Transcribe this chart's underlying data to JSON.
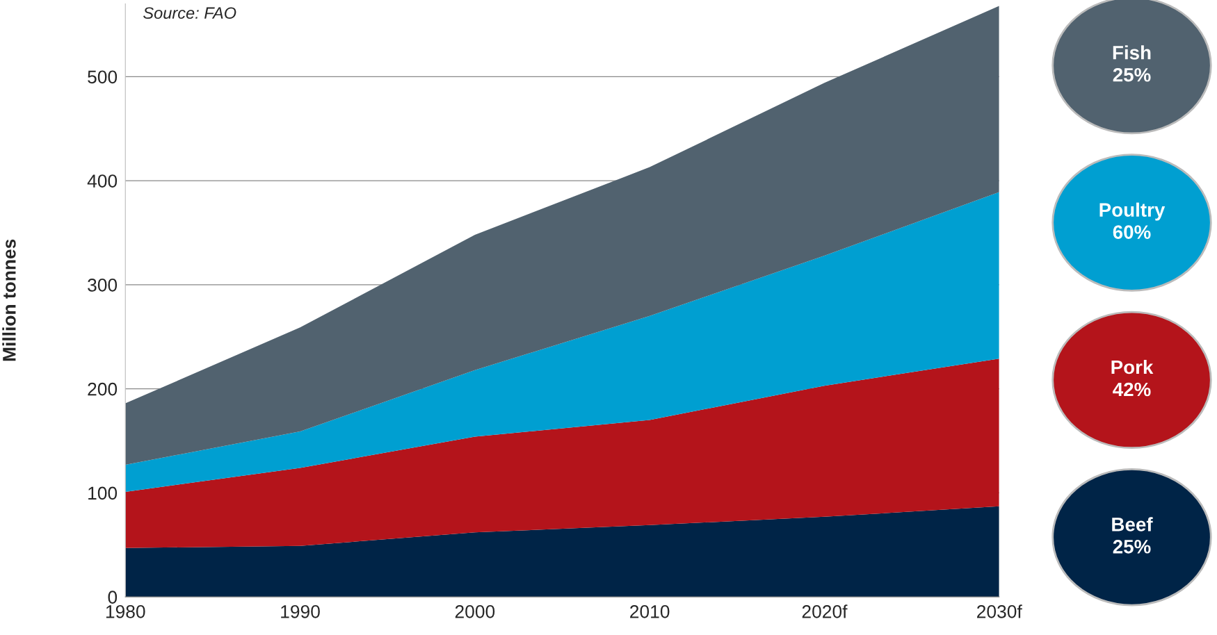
{
  "chart_data": {
    "type": "area",
    "stacked": true,
    "ylabel": "Million tonnes",
    "categories": [
      "1980",
      "1990",
      "2000",
      "2010",
      "2020f",
      "2030f"
    ],
    "series": [
      {
        "name": "Beef",
        "color": "#002447",
        "values": [
          47,
          49,
          62,
          69,
          77,
          87
        ]
      },
      {
        "name": "Pork",
        "color": "#b4141b",
        "values": [
          54,
          75,
          92,
          101,
          126,
          142
        ]
      },
      {
        "name": "Poultry",
        "color": "#009fd1",
        "values": [
          26,
          35,
          64,
          100,
          125,
          160
        ]
      },
      {
        "name": "Fish",
        "color": "#51626f",
        "values": [
          59,
          100,
          130,
          143,
          166,
          179
        ]
      }
    ],
    "ylim": [
      0,
      570
    ],
    "yticks": [
      0,
      100,
      200,
      300,
      400,
      500
    ],
    "grid": "y",
    "legend": "right",
    "annotations": [
      "Source: FAO",
      "25%",
      "60%",
      "42%",
      "25%"
    ]
  }
}
